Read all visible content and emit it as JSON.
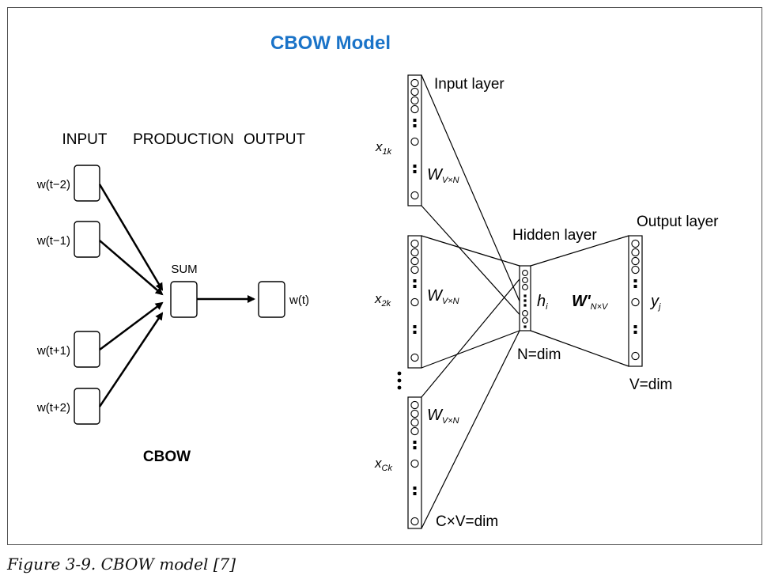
{
  "title": "CBOW Model",
  "title_color": "#1a73c8",
  "left_diagram": {
    "headers": {
      "input": "INPUT",
      "production": "PRODUCTION",
      "output": "OUTPUT"
    },
    "inputs": [
      "w(t−2)",
      "w(t−1)",
      "w(t+1)",
      "w(t+2)"
    ],
    "sum_label": "SUM",
    "output_label": "w(t)",
    "name": "CBOW"
  },
  "right_diagram": {
    "input_layer_label": "Input layer",
    "hidden_layer_label": "Hidden layer",
    "output_layer_label": "Output layer",
    "x1_main": "x",
    "x1_sub": "1k",
    "x2_main": "x",
    "x2_sub": "2k",
    "xc_main": "x",
    "xc_sub": "Ck",
    "w_main": "W",
    "w_sub": "V×N",
    "wp_main": "W'",
    "wp_sub": "N×V",
    "h_main": "h",
    "h_sub": "i",
    "y_main": "y",
    "y_sub": "j",
    "n_dim": "N=dim",
    "v_dim": "V=dim",
    "cv_dim": "C×V=dim"
  },
  "caption": "Figure 3-9. CBOW model [7]"
}
